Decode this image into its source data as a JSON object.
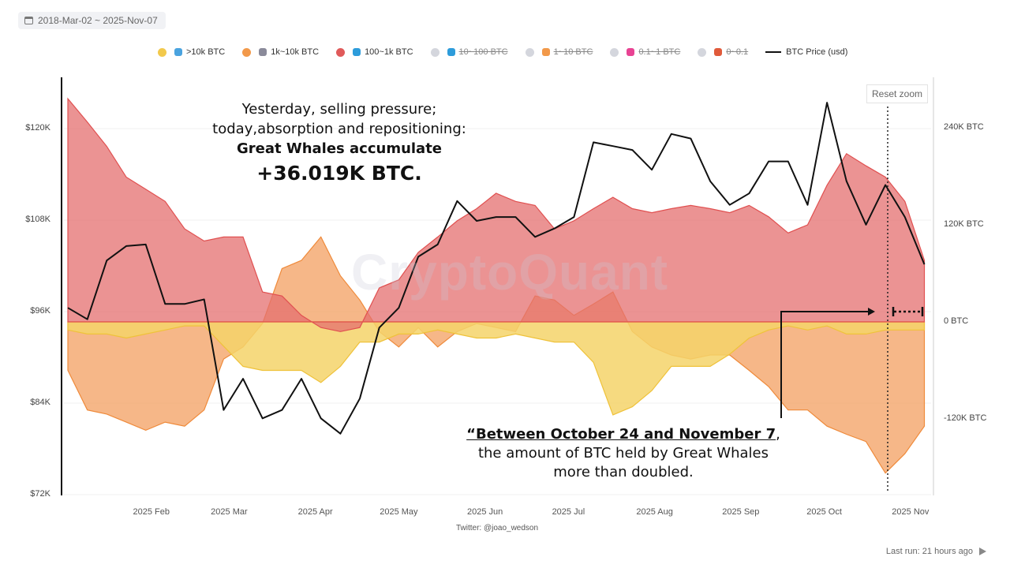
{
  "date_range": "2018-Mar-02 ~ 2025-Nov-07",
  "legend": [
    {
      "label": ">10k BTC",
      "color": "#f2c94c",
      "icon_color": "#4aa3df",
      "icon": "great-whale-icon",
      "enabled": true
    },
    {
      "label": "1k~10k BTC",
      "color": "#f2994a",
      "icon_color": "#8a8a9a",
      "icon": "whale-icon",
      "enabled": true
    },
    {
      "label": "100~1k BTC",
      "color": "#e05a5a",
      "icon_color": "#2d9cdb",
      "icon": "shark-icon",
      "enabled": true
    },
    {
      "label": "10~100 BTC",
      "color": "#d4d6dd",
      "icon_color": "#2d9cdb",
      "icon": "fish-icon",
      "enabled": false
    },
    {
      "label": "1~10 BTC",
      "color": "#d4d6dd",
      "icon_color": "#f2994a",
      "icon": "crab-icon",
      "enabled": false
    },
    {
      "label": "0.1~1 BTC",
      "color": "#d4d6dd",
      "icon_color": "#e84393",
      "icon": "octopus-icon",
      "enabled": false
    },
    {
      "label": "0~0.1",
      "color": "#d4d6dd",
      "icon_color": "#e05a3a",
      "icon": "shrimp-icon",
      "enabled": false
    },
    {
      "label": "BTC Price (usd)",
      "color": "#111111",
      "icon": "line-icon",
      "enabled": true
    }
  ],
  "reset_zoom": "Reset zoom",
  "watermark": "CryptoQuant",
  "annotation_top": {
    "line1": "Yesterday, selling pressure;",
    "line2": "today,absorption and repositioning:",
    "line3": "Great Whales accumulate",
    "line4": "+36.019K BTC."
  },
  "annotation_bottom": {
    "quote": "“Between October 24 and November 7",
    "comma": ",",
    "line2": "the amount of BTC held by Great Whales",
    "line3": "more than doubled."
  },
  "footer": "Twitter: @joao_wedson",
  "last_run": "Last run: 21 hours ago",
  "chart_data": {
    "type": "area",
    "x_range": [
      "2025-01-02",
      "2025-11-07"
    ],
    "x_ticks": [
      "2025 Feb",
      "2025 Mar",
      "2025 Apr",
      "2025 May",
      "2025 Jun",
      "2025 Jul",
      "2025 Aug",
      "2025 Sep",
      "2025 Oct",
      "2025 Nov"
    ],
    "x_tick_dates": [
      "2025-02-01",
      "2025-03-01",
      "2025-04-01",
      "2025-05-01",
      "2025-06-01",
      "2025-07-01",
      "2025-08-01",
      "2025-09-01",
      "2025-10-01",
      "2025-11-01"
    ],
    "y_left": {
      "ticks": [
        "$72K",
        "$84K",
        "$96K",
        "$108K",
        "$120K"
      ],
      "values": [
        72,
        84,
        96,
        108,
        120
      ],
      "range": [
        72,
        124
      ],
      "unit": "K USD"
    },
    "y_right": {
      "ticks": [
        "-120K BTC",
        "0 BTC",
        "120K BTC",
        "240K BTC"
      ],
      "values": [
        -120,
        0,
        120,
        240
      ],
      "range": [
        -215,
        290
      ],
      "unit": "K BTC"
    },
    "grid": true,
    "legend_position": "top",
    "dates": [
      "2025-01-02",
      "2025-01-09",
      "2025-01-16",
      "2025-01-23",
      "2025-01-30",
      "2025-02-06",
      "2025-02-13",
      "2025-02-20",
      "2025-02-27",
      "2025-03-06",
      "2025-03-13",
      "2025-03-20",
      "2025-03-27",
      "2025-04-03",
      "2025-04-10",
      "2025-04-17",
      "2025-04-24",
      "2025-05-01",
      "2025-05-08",
      "2025-05-15",
      "2025-05-22",
      "2025-05-29",
      "2025-06-05",
      "2025-06-12",
      "2025-06-19",
      "2025-06-26",
      "2025-07-03",
      "2025-07-10",
      "2025-07-17",
      "2025-07-24",
      "2025-07-31",
      "2025-08-07",
      "2025-08-14",
      "2025-08-21",
      "2025-08-28",
      "2025-09-04",
      "2025-09-11",
      "2025-09-18",
      "2025-09-25",
      "2025-10-02",
      "2025-10-09",
      "2025-10-16",
      "2025-10-23",
      "2025-10-30",
      "2025-11-06"
    ],
    "series": [
      {
        "name": ">10k BTC",
        "axis": "right",
        "color": "#f2c94c",
        "values": [
          -10,
          -15,
          -15,
          -20,
          -15,
          -10,
          -5,
          -5,
          -30,
          -55,
          -60,
          -60,
          -60,
          -75,
          -55,
          -25,
          -25,
          -15,
          -15,
          -10,
          -15,
          -20,
          -20,
          -15,
          -20,
          -25,
          -25,
          -50,
          -115,
          -105,
          -85,
          -55,
          -55,
          -55,
          -40,
          -20,
          -10,
          -5,
          -10,
          -5,
          -15,
          -15,
          -10,
          -10,
          -10
        ]
      },
      {
        "name": "1k~10k BTC",
        "axis": "right",
        "color": "#f2994a",
        "values": [
          -60,
          -109,
          -114,
          -124,
          -134,
          -124,
          -129,
          -109,
          -46,
          -31,
          -2,
          66,
          76,
          105,
          57,
          27,
          -12,
          -31,
          -7,
          -31,
          -12,
          -2,
          -7,
          -12,
          32,
          27,
          8,
          22,
          37,
          -12,
          -31,
          -41,
          -46,
          -41,
          -41,
          -60,
          -80,
          -109,
          -109,
          -129,
          -139,
          -148,
          -187,
          -163,
          -129
        ]
      },
      {
        "name": "100~1k BTC",
        "axis": "right",
        "color": "#e05a5a",
        "values": [
          276,
          247,
          217,
          179,
          164,
          149,
          115,
          100,
          105,
          105,
          37,
          32,
          8,
          -7,
          -12,
          -7,
          42,
          52,
          86,
          105,
          125,
          140,
          159,
          149,
          144,
          115,
          125,
          140,
          154,
          140,
          135,
          140,
          144,
          140,
          135,
          144,
          130,
          110,
          120,
          169,
          208,
          193,
          179,
          149,
          76
        ]
      },
      {
        "name": "BTC Price (usd)",
        "axis": "left",
        "color": "#111111",
        "values": [
          96.5,
          95.0,
          102.7,
          104.6,
          104.8,
          97.0,
          97.0,
          97.6,
          83.1,
          87.2,
          82.0,
          83.1,
          87.2,
          82.0,
          80.0,
          84.6,
          93.9,
          96.5,
          103.2,
          104.8,
          110.5,
          107.9,
          108.4,
          108.4,
          105.8,
          106.9,
          108.4,
          118.2,
          117.7,
          117.2,
          114.6,
          119.3,
          118.7,
          113.1,
          110.0,
          111.5,
          115.7,
          115.7,
          110.0,
          123.4,
          113.1,
          107.4,
          112.6,
          108.4,
          102.2
        ]
      }
    ]
  }
}
